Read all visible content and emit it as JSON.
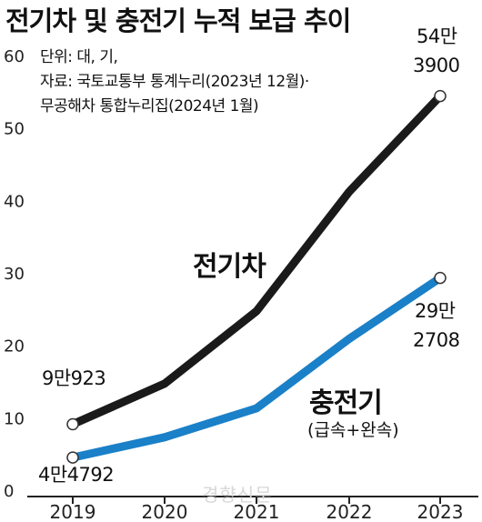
{
  "title": "전기차 및 충전기 누적 보급 추이",
  "meta": {
    "unit": "단위: 대, 기,",
    "source_line1": "자료: 국토교통부 통계누리(2023년 12월)·",
    "source_line2": "무공해차 통합누리집(2024년 1월)"
  },
  "watermark": "경향신문",
  "colors": {
    "ev": "#1a1a1a",
    "charger": "#1a80c8",
    "axis": "#222222",
    "tick_text": "#222222"
  },
  "chart_data": {
    "type": "line",
    "categories": [
      "2019",
      "2020",
      "2021",
      "2022",
      "2023"
    ],
    "ylim": [
      0,
      60
    ],
    "yticks": [
      0,
      10,
      20,
      30,
      40,
      50,
      60
    ],
    "grid": false,
    "series": [
      {
        "name": "전기차",
        "values": [
          9.1,
          14.7,
          24.7,
          41.2,
          54.4
        ]
      },
      {
        "name": "충전기",
        "sublabel": "(급속+완속)",
        "values": [
          4.5,
          7.3,
          11.3,
          20.9,
          29.3
        ]
      }
    ],
    "annotations": {
      "ev_start": "9만923",
      "ev_end_line1": "54만",
      "ev_end_line2": "3900",
      "charger_start": "4만4792",
      "charger_end_line1": "29만",
      "charger_end_line2": "2708"
    }
  }
}
